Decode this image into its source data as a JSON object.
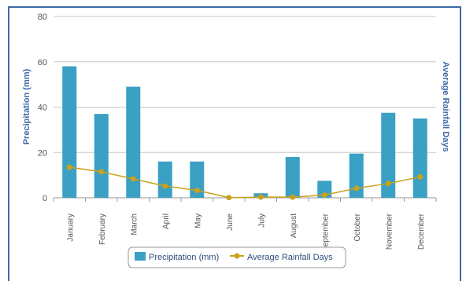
{
  "chart_data": {
    "type": "bar",
    "categories": [
      "January",
      "February",
      "March",
      "April",
      "May",
      "June",
      "July",
      "August",
      "September",
      "October",
      "November",
      "December"
    ],
    "series": [
      {
        "name": "Precipitation (mm)",
        "type": "bar",
        "color": "#3aa0c4",
        "values": [
          58,
          37,
          49,
          16,
          16,
          0,
          2,
          18,
          7.5,
          19.5,
          37.5,
          35
        ]
      },
      {
        "name": "Average Rainfall Days",
        "type": "line",
        "color": "#c9a21b",
        "values": [
          13.5,
          11.5,
          8.3,
          5.2,
          3.3,
          0.1,
          0.3,
          0.3,
          1.2,
          4.2,
          6.3,
          9.2
        ]
      }
    ],
    "ylabel": "Precipitation (mm)",
    "y2label": "Average Rainfall Days",
    "ylim": [
      0,
      80
    ],
    "yticks": [
      0,
      20,
      40,
      60,
      80
    ],
    "grid": true,
    "legend_position": "bottom-center"
  }
}
